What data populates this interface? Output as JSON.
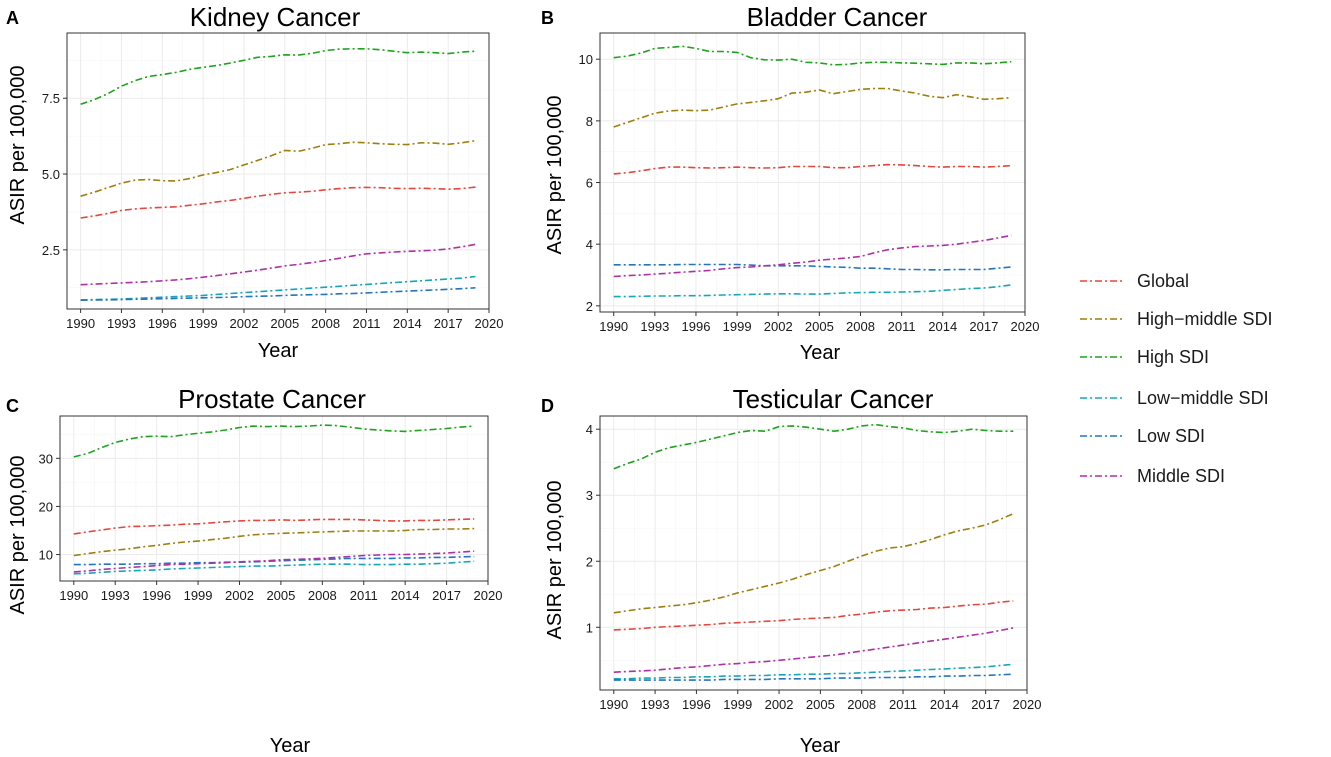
{
  "legend": {
    "entries": [
      {
        "name": "Global",
        "color": "#e8453c"
      },
      {
        "name": "High−middle SDI",
        "color": "#9e7f0d"
      },
      {
        "name": "High SDI",
        "color": "#1da31d"
      },
      {
        "name": "Low−middle SDI",
        "color": "#16a7b7"
      },
      {
        "name": "Low SDI",
        "color": "#2474c2"
      },
      {
        "name": "Middle SDI",
        "color": "#b12fa6"
      }
    ]
  },
  "chart_data": [
    {
      "type": "line",
      "panel_letter": "A",
      "title": "Kidney Cancer",
      "xlabel": "Year",
      "ylabel": "ASIR per 100,000",
      "xlim": [
        1989,
        2020
      ],
      "ylim": [
        0.55,
        9.65
      ],
      "x_ticks": [
        1990,
        1993,
        1996,
        1999,
        2002,
        2005,
        2008,
        2011,
        2014,
        2017,
        2020
      ],
      "y_ticks": [
        2.5,
        5.0,
        7.5
      ],
      "y_tick_labels": [
        "2.5",
        "5.0",
        "7.5"
      ],
      "x": [
        1990,
        1991,
        1992,
        1993,
        1994,
        1995,
        1996,
        1997,
        1998,
        1999,
        2000,
        2001,
        2002,
        2003,
        2004,
        2005,
        2006,
        2007,
        2008,
        2009,
        2010,
        2011,
        2012,
        2013,
        2014,
        2015,
        2016,
        2017,
        2018,
        2019
      ],
      "series": [
        {
          "name": "Global",
          "values": [
            3.55,
            3.62,
            3.7,
            3.8,
            3.85,
            3.88,
            3.9,
            3.92,
            3.97,
            4.02,
            4.08,
            4.13,
            4.2,
            4.27,
            4.33,
            4.38,
            4.4,
            4.43,
            4.48,
            4.52,
            4.55,
            4.56,
            4.55,
            4.53,
            4.52,
            4.53,
            4.52,
            4.5,
            4.52,
            4.57
          ]
        },
        {
          "name": "High−middle SDI",
          "values": [
            4.27,
            4.4,
            4.55,
            4.7,
            4.8,
            4.82,
            4.78,
            4.77,
            4.85,
            4.97,
            5.05,
            5.15,
            5.3,
            5.45,
            5.6,
            5.78,
            5.75,
            5.85,
            5.97,
            6.0,
            6.05,
            6.03,
            6.0,
            5.98,
            5.97,
            6.03,
            6.02,
            5.98,
            6.03,
            6.1
          ]
        },
        {
          "name": "High SDI",
          "values": [
            7.3,
            7.45,
            7.65,
            7.9,
            8.08,
            8.22,
            8.28,
            8.35,
            8.45,
            8.52,
            8.58,
            8.66,
            8.75,
            8.85,
            8.88,
            8.93,
            8.92,
            8.98,
            9.07,
            9.12,
            9.13,
            9.13,
            9.1,
            9.05,
            9.0,
            9.02,
            9.0,
            8.97,
            9.02,
            9.05
          ]
        },
        {
          "name": "Low−middle SDI",
          "values": [
            0.85,
            0.86,
            0.87,
            0.88,
            0.9,
            0.92,
            0.94,
            0.96,
            0.98,
            1.0,
            1.03,
            1.06,
            1.09,
            1.12,
            1.15,
            1.18,
            1.21,
            1.24,
            1.27,
            1.3,
            1.33,
            1.36,
            1.39,
            1.42,
            1.45,
            1.48,
            1.51,
            1.54,
            1.57,
            1.62
          ]
        },
        {
          "name": "Low SDI",
          "values": [
            0.84,
            0.85,
            0.85,
            0.86,
            0.87,
            0.88,
            0.89,
            0.9,
            0.91,
            0.92,
            0.93,
            0.94,
            0.96,
            0.97,
            0.98,
            1.0,
            1.01,
            1.02,
            1.03,
            1.05,
            1.06,
            1.08,
            1.1,
            1.12,
            1.14,
            1.16,
            1.18,
            1.2,
            1.22,
            1.25
          ]
        },
        {
          "name": "Middle SDI",
          "values": [
            1.35,
            1.37,
            1.39,
            1.41,
            1.43,
            1.45,
            1.48,
            1.51,
            1.55,
            1.6,
            1.65,
            1.71,
            1.77,
            1.83,
            1.9,
            1.97,
            2.02,
            2.08,
            2.15,
            2.22,
            2.3,
            2.37,
            2.4,
            2.43,
            2.45,
            2.47,
            2.49,
            2.53,
            2.6,
            2.68
          ]
        }
      ]
    },
    {
      "type": "line",
      "panel_letter": "B",
      "title": "Bladder Cancer",
      "xlabel": "Year",
      "ylabel": "ASIR per 100,000",
      "xlim": [
        1989,
        2020
      ],
      "ylim": [
        1.8,
        10.85
      ],
      "x_ticks": [
        1990,
        1993,
        1996,
        1999,
        2002,
        2005,
        2008,
        2011,
        2014,
        2017,
        2020
      ],
      "y_ticks": [
        2,
        4,
        6,
        8,
        10
      ],
      "y_tick_labels": [
        "2",
        "4",
        "6",
        "8",
        "10"
      ],
      "x": [
        1990,
        1991,
        1992,
        1993,
        1994,
        1995,
        1996,
        1997,
        1998,
        1999,
        2000,
        2001,
        2002,
        2003,
        2004,
        2005,
        2006,
        2007,
        2008,
        2009,
        2010,
        2011,
        2012,
        2013,
        2014,
        2015,
        2016,
        2017,
        2018,
        2019
      ],
      "series": [
        {
          "name": "Global",
          "values": [
            6.28,
            6.32,
            6.38,
            6.45,
            6.5,
            6.5,
            6.48,
            6.47,
            6.48,
            6.5,
            6.48,
            6.47,
            6.48,
            6.52,
            6.52,
            6.52,
            6.48,
            6.48,
            6.52,
            6.55,
            6.58,
            6.57,
            6.55,
            6.52,
            6.5,
            6.52,
            6.52,
            6.5,
            6.52,
            6.55
          ]
        },
        {
          "name": "High−middle SDI",
          "values": [
            7.8,
            7.95,
            8.1,
            8.25,
            8.32,
            8.35,
            8.33,
            8.35,
            8.45,
            8.55,
            8.6,
            8.65,
            8.72,
            8.9,
            8.93,
            9.0,
            8.88,
            8.95,
            9.02,
            9.05,
            9.05,
            8.97,
            8.9,
            8.8,
            8.75,
            8.85,
            8.78,
            8.7,
            8.72,
            8.75
          ]
        },
        {
          "name": "High SDI",
          "values": [
            10.05,
            10.1,
            10.2,
            10.35,
            10.38,
            10.42,
            10.35,
            10.25,
            10.25,
            10.22,
            10.05,
            9.98,
            9.97,
            10.0,
            9.9,
            9.88,
            9.82,
            9.83,
            9.88,
            9.9,
            9.9,
            9.88,
            9.87,
            9.85,
            9.83,
            9.88,
            9.88,
            9.85,
            9.88,
            9.92
          ]
        },
        {
          "name": "Low−middle SDI",
          "values": [
            2.3,
            2.3,
            2.31,
            2.32,
            2.32,
            2.33,
            2.33,
            2.34,
            2.35,
            2.36,
            2.37,
            2.38,
            2.39,
            2.39,
            2.38,
            2.38,
            2.4,
            2.42,
            2.43,
            2.44,
            2.44,
            2.45,
            2.46,
            2.47,
            2.5,
            2.53,
            2.56,
            2.58,
            2.62,
            2.68
          ]
        },
        {
          "name": "Low SDI",
          "values": [
            3.33,
            3.33,
            3.33,
            3.33,
            3.33,
            3.34,
            3.34,
            3.34,
            3.34,
            3.34,
            3.32,
            3.3,
            3.3,
            3.3,
            3.3,
            3.28,
            3.26,
            3.25,
            3.22,
            3.22,
            3.2,
            3.18,
            3.18,
            3.17,
            3.17,
            3.18,
            3.18,
            3.18,
            3.22,
            3.26
          ]
        },
        {
          "name": "Middle SDI",
          "values": [
            2.95,
            2.98,
            3.0,
            3.03,
            3.06,
            3.09,
            3.12,
            3.15,
            3.2,
            3.24,
            3.26,
            3.3,
            3.33,
            3.38,
            3.42,
            3.48,
            3.52,
            3.55,
            3.6,
            3.72,
            3.82,
            3.88,
            3.92,
            3.94,
            3.96,
            4.0,
            4.06,
            4.12,
            4.2,
            4.28
          ]
        }
      ]
    },
    {
      "type": "line",
      "panel_letter": "C",
      "title": "Prostate Cancer",
      "xlabel": "Year",
      "ylabel": "ASIR per 100,000",
      "xlim": [
        1989,
        2020
      ],
      "ylim": [
        4.5,
        38.8
      ],
      "x_ticks": [
        1990,
        1993,
        1996,
        1999,
        2002,
        2005,
        2008,
        2011,
        2014,
        2017,
        2020
      ],
      "y_ticks": [
        10,
        20,
        30
      ],
      "y_tick_labels": [
        "10",
        "20",
        "30"
      ],
      "x": [
        1990,
        1991,
        1992,
        1993,
        1994,
        1995,
        1996,
        1997,
        1998,
        1999,
        2000,
        2001,
        2002,
        2003,
        2004,
        2005,
        2006,
        2007,
        2008,
        2009,
        2010,
        2011,
        2012,
        2013,
        2014,
        2015,
        2016,
        2017,
        2018,
        2019
      ],
      "series": [
        {
          "name": "Global",
          "values": [
            14.3,
            14.7,
            15.1,
            15.5,
            15.8,
            15.9,
            16.0,
            16.1,
            16.3,
            16.4,
            16.6,
            16.8,
            17.0,
            17.1,
            17.1,
            17.2,
            17.1,
            17.2,
            17.3,
            17.3,
            17.3,
            17.2,
            17.1,
            17.0,
            17.0,
            17.1,
            17.1,
            17.2,
            17.3,
            17.4
          ]
        },
        {
          "name": "High−middle SDI",
          "values": [
            9.8,
            10.2,
            10.6,
            10.9,
            11.2,
            11.6,
            11.9,
            12.3,
            12.6,
            12.8,
            13.1,
            13.4,
            13.8,
            14.1,
            14.3,
            14.4,
            14.5,
            14.6,
            14.7,
            14.8,
            14.9,
            14.9,
            14.9,
            14.9,
            15.0,
            15.2,
            15.2,
            15.3,
            15.3,
            15.4
          ]
        },
        {
          "name": "High SDI",
          "values": [
            30.3,
            31.0,
            32.2,
            33.3,
            34.0,
            34.5,
            34.6,
            34.5,
            34.9,
            35.2,
            35.5,
            35.9,
            36.4,
            36.7,
            36.6,
            36.7,
            36.6,
            36.7,
            36.9,
            36.8,
            36.5,
            36.1,
            35.9,
            35.7,
            35.6,
            35.8,
            36.0,
            36.2,
            36.5,
            36.7
          ]
        },
        {
          "name": "Low−middle SDI",
          "values": [
            6.0,
            6.1,
            6.3,
            6.5,
            6.6,
            6.7,
            6.8,
            7.0,
            7.1,
            7.2,
            7.3,
            7.4,
            7.5,
            7.6,
            7.6,
            7.7,
            7.8,
            7.9,
            8.0,
            8.0,
            8.0,
            7.9,
            7.9,
            7.9,
            8.0,
            8.0,
            8.1,
            8.2,
            8.4,
            8.6
          ]
        },
        {
          "name": "Low SDI",
          "values": [
            7.9,
            7.9,
            8.0,
            8.0,
            8.0,
            8.1,
            8.1,
            8.2,
            8.2,
            8.3,
            8.3,
            8.4,
            8.4,
            8.5,
            8.6,
            8.7,
            8.8,
            8.9,
            9.0,
            9.1,
            9.2,
            9.2,
            9.2,
            9.2,
            9.3,
            9.3,
            9.4,
            9.4,
            9.5,
            9.6
          ]
        },
        {
          "name": "Middle SDI",
          "values": [
            6.4,
            6.6,
            6.9,
            7.1,
            7.3,
            7.5,
            7.7,
            7.9,
            8.0,
            8.1,
            8.2,
            8.3,
            8.5,
            8.6,
            8.7,
            8.9,
            9.0,
            9.1,
            9.2,
            9.4,
            9.6,
            9.8,
            9.9,
            10.0,
            10.0,
            10.1,
            10.2,
            10.3,
            10.5,
            10.7
          ]
        }
      ]
    },
    {
      "type": "line",
      "panel_letter": "D",
      "title": "Testicular Cancer",
      "xlabel": "Year",
      "ylabel": "ASIR per 100,000",
      "xlim": [
        1989,
        2020
      ],
      "ylim": [
        0.05,
        4.2
      ],
      "x_ticks": [
        1990,
        1993,
        1996,
        1999,
        2002,
        2005,
        2008,
        2011,
        2014,
        2017,
        2020
      ],
      "y_ticks": [
        1,
        2,
        3,
        4
      ],
      "y_tick_labels": [
        "1",
        "2",
        "3",
        "4"
      ],
      "x": [
        1990,
        1991,
        1992,
        1993,
        1994,
        1995,
        1996,
        1997,
        1998,
        1999,
        2000,
        2001,
        2002,
        2003,
        2004,
        2005,
        2006,
        2007,
        2008,
        2009,
        2010,
        2011,
        2012,
        2013,
        2014,
        2015,
        2016,
        2017,
        2018,
        2019
      ],
      "series": [
        {
          "name": "Global",
          "values": [
            0.96,
            0.97,
            0.98,
            1.0,
            1.01,
            1.02,
            1.03,
            1.04,
            1.06,
            1.07,
            1.08,
            1.09,
            1.1,
            1.12,
            1.13,
            1.14,
            1.15,
            1.18,
            1.2,
            1.23,
            1.25,
            1.26,
            1.27,
            1.29,
            1.3,
            1.32,
            1.34,
            1.35,
            1.38,
            1.4
          ]
        },
        {
          "name": "High−middle SDI",
          "values": [
            1.22,
            1.25,
            1.28,
            1.3,
            1.32,
            1.34,
            1.37,
            1.41,
            1.46,
            1.52,
            1.57,
            1.62,
            1.67,
            1.73,
            1.8,
            1.86,
            1.92,
            2.0,
            2.08,
            2.15,
            2.2,
            2.22,
            2.27,
            2.33,
            2.4,
            2.46,
            2.5,
            2.55,
            2.63,
            2.72
          ]
        },
        {
          "name": "High SDI",
          "values": [
            3.4,
            3.48,
            3.55,
            3.65,
            3.72,
            3.76,
            3.8,
            3.85,
            3.9,
            3.95,
            3.98,
            3.97,
            4.04,
            4.05,
            4.03,
            4.0,
            3.97,
            4.0,
            4.05,
            4.07,
            4.04,
            4.02,
            3.98,
            3.96,
            3.95,
            3.97,
            4.0,
            3.98,
            3.97,
            3.97
          ]
        },
        {
          "name": "Low−middle SDI",
          "values": [
            0.22,
            0.22,
            0.23,
            0.23,
            0.24,
            0.24,
            0.25,
            0.25,
            0.26,
            0.26,
            0.27,
            0.27,
            0.28,
            0.28,
            0.29,
            0.29,
            0.3,
            0.3,
            0.31,
            0.32,
            0.33,
            0.34,
            0.35,
            0.36,
            0.37,
            0.38,
            0.39,
            0.4,
            0.42,
            0.44
          ]
        },
        {
          "name": "Low SDI",
          "values": [
            0.2,
            0.2,
            0.2,
            0.2,
            0.2,
            0.2,
            0.2,
            0.2,
            0.21,
            0.21,
            0.21,
            0.21,
            0.22,
            0.22,
            0.22,
            0.22,
            0.23,
            0.23,
            0.23,
            0.24,
            0.24,
            0.24,
            0.25,
            0.25,
            0.26,
            0.26,
            0.27,
            0.27,
            0.28,
            0.29
          ]
        },
        {
          "name": "Middle SDI",
          "values": [
            0.32,
            0.33,
            0.34,
            0.35,
            0.37,
            0.39,
            0.4,
            0.42,
            0.44,
            0.45,
            0.47,
            0.48,
            0.5,
            0.52,
            0.54,
            0.56,
            0.58,
            0.61,
            0.64,
            0.67,
            0.7,
            0.73,
            0.76,
            0.79,
            0.82,
            0.85,
            0.88,
            0.91,
            0.95,
            0.99
          ]
        }
      ]
    }
  ]
}
